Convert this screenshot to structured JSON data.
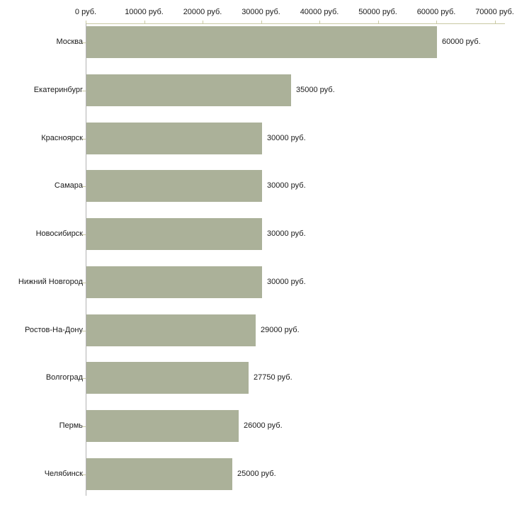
{
  "chart_data": {
    "type": "bar",
    "orientation": "horizontal",
    "title": "",
    "xlabel": "",
    "ylabel": "",
    "xlim": [
      0,
      70000
    ],
    "x_tick_step": 10000,
    "x_ticks": [
      "0 руб.",
      "10000 руб.",
      "20000 руб.",
      "30000 руб.",
      "40000 руб.",
      "50000 руб.",
      "60000 руб.",
      "70000 руб."
    ],
    "categories": [
      "Москва",
      "Екатеринбург",
      "Красноярск",
      "Самара",
      "Новосибирск",
      "Нижний Новгород",
      "Ростов-На-Дону",
      "Волгоград",
      "Пермь",
      "Челябинск"
    ],
    "values": [
      60000,
      35000,
      30000,
      30000,
      30000,
      30000,
      29000,
      27750,
      26000,
      25000
    ],
    "value_labels": [
      "60000 руб.",
      "35000 руб.",
      "30000 руб.",
      "30000 руб.",
      "30000 руб.",
      "30000 руб.",
      "29000 руб.",
      "27750 руб.",
      "26000 руб.",
      "25000 руб."
    ],
    "grid": false,
    "legend": false,
    "colors": {
      "bar": "#abb199",
      "x_axis_line": "#c9c9a3",
      "y_axis_line": "#b3b3b3",
      "text": "#1a1a1a",
      "background": "#ffffff"
    }
  }
}
